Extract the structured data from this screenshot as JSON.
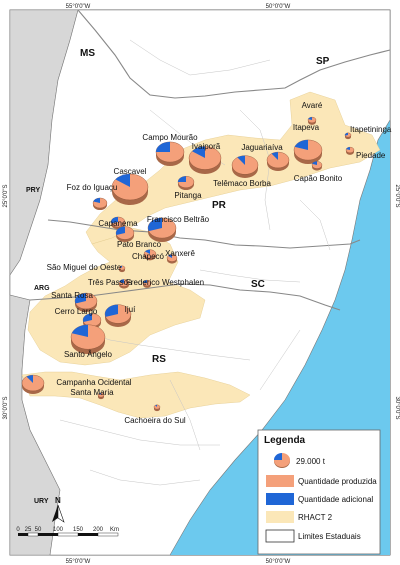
{
  "colors": {
    "ocean": "#6cc9ee",
    "foreign": "#d7d7d7",
    "land": "#ffffff",
    "rhact": "#fbe7b8",
    "produced": "#f4a07a",
    "additional": "#1f66d6",
    "border": "#888888"
  },
  "coords": {
    "top": [
      "55°0'0\"W",
      "50°0'0\"W"
    ],
    "bottom": [
      "55°0'0\"W",
      "50°0'0\"W"
    ],
    "left": [
      "25°0'0\"S",
      "30°0'0\"S"
    ],
    "right": [
      "25°0'0\"S",
      "30°0'0\"S"
    ]
  },
  "states": [
    "MS",
    "SP",
    "PR",
    "SC",
    "RS"
  ],
  "countries": [
    "PRY",
    "ARG",
    "URY"
  ],
  "cities": [
    {
      "name": "Avaré",
      "size": 4,
      "add": 0.2
    },
    {
      "name": "Itapeva",
      "size": 14,
      "add": 0.2
    },
    {
      "name": "Itapetininga",
      "size": 3,
      "add": 0.3
    },
    {
      "name": "Piedade",
      "size": 4,
      "add": 0.2
    },
    {
      "name": "Capão Bonito",
      "size": 5,
      "add": 0.2
    },
    {
      "name": "Jaguariaíva",
      "size": 11,
      "add": 0.1
    },
    {
      "name": "Campo Mourão",
      "size": 14,
      "add": 0.25
    },
    {
      "name": "Ivaiporã",
      "size": 16,
      "add": 0.15
    },
    {
      "name": "Telêmaco Borba",
      "size": 13,
      "add": 0.1
    },
    {
      "name": "Pitanga",
      "size": 8,
      "add": 0.25
    },
    {
      "name": "Cascavel",
      "size": 18,
      "add": 0.15
    },
    {
      "name": "Foz do Iguaçu",
      "size": 7,
      "add": 0.2
    },
    {
      "name": "Capanema",
      "size": 7,
      "add": 0.3
    },
    {
      "name": "Francisco Beltrão",
      "size": 14,
      "add": 0.3
    },
    {
      "name": "Pato Branco",
      "size": 9,
      "add": 0.3
    },
    {
      "name": "Chapecó",
      "size": 6,
      "add": 0.15
    },
    {
      "name": "Xanxerê",
      "size": 5,
      "add": 0.15
    },
    {
      "name": "São Miguel do Oeste",
      "size": 3,
      "add": 0.1
    },
    {
      "name": "Três Passos",
      "size": 5,
      "add": 0.2
    },
    {
      "name": "Frederico Westphalen",
      "size": 4,
      "add": 0.2
    },
    {
      "name": "Santa Rosa",
      "size": 11,
      "add": 0.3
    },
    {
      "name": "Ijuí",
      "size": 13,
      "add": 0.3
    },
    {
      "name": "Cerro Largo",
      "size": 9,
      "add": 0.3
    },
    {
      "name": "Santo Ângelo",
      "size": 17,
      "add": 0.2
    },
    {
      "name": "Campanha Ocidental",
      "size": 11,
      "add": 0.1
    },
    {
      "name": "Santa Maria",
      "size": 3,
      "add": 0.1
    },
    {
      "name": "Cachoeira do Sul",
      "size": 3,
      "add": 0.1
    }
  ],
  "legend": {
    "title": "Legenda",
    "items": [
      {
        "key": "pie",
        "label": "29.000 t"
      },
      {
        "key": "produced",
        "label": "Quantidade produzida"
      },
      {
        "key": "additional",
        "label": "Quantidade adicional"
      },
      {
        "key": "rhact",
        "label": "RHACT 2"
      },
      {
        "key": "limits",
        "label": "Limites Estaduais"
      }
    ]
  },
  "north": "N",
  "scale": {
    "ticks": [
      "0",
      "25",
      "50",
      "100",
      "150",
      "200"
    ],
    "unit": "Km"
  }
}
